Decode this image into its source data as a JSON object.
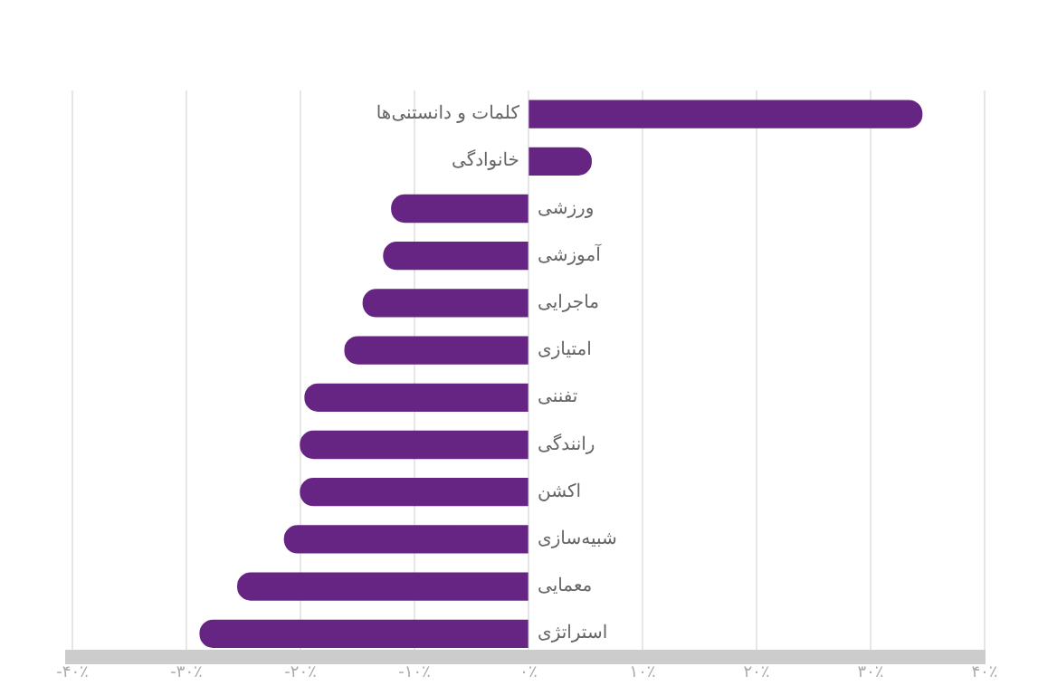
{
  "chart_data": {
    "type": "bar",
    "orientation": "horizontal",
    "categories": [
      "کلمات و دانستنی‌ها",
      "خانوادگی",
      "ورزشی",
      "آموزشی",
      "ماجرایی",
      "امتیازی",
      "تفننی",
      "رانندگی",
      "اکشن",
      "شبیه‌سازی",
      "معمایی",
      "استراتژی"
    ],
    "values": [
      34.5,
      5.5,
      -12,
      -12.7,
      -14.5,
      -16.1,
      -19.6,
      -20,
      -20,
      -21.4,
      -25.5,
      -28.8
    ],
    "color": "#662483",
    "xlim": [
      -40,
      40
    ],
    "xticks": [
      {
        "value": -40,
        "label": "-۴۰٪"
      },
      {
        "value": -30,
        "label": "-۳۰٪"
      },
      {
        "value": -20,
        "label": "-۲۰٪"
      },
      {
        "value": -10,
        "label": "-۱۰٪"
      },
      {
        "value": 0,
        "label": "۰٪"
      },
      {
        "value": 10,
        "label": "۱۰٪"
      },
      {
        "value": 20,
        "label": "۲۰٪"
      },
      {
        "value": 30,
        "label": "۳۰٪"
      },
      {
        "value": 40,
        "label": "۴۰٪"
      }
    ],
    "grid": "x"
  }
}
